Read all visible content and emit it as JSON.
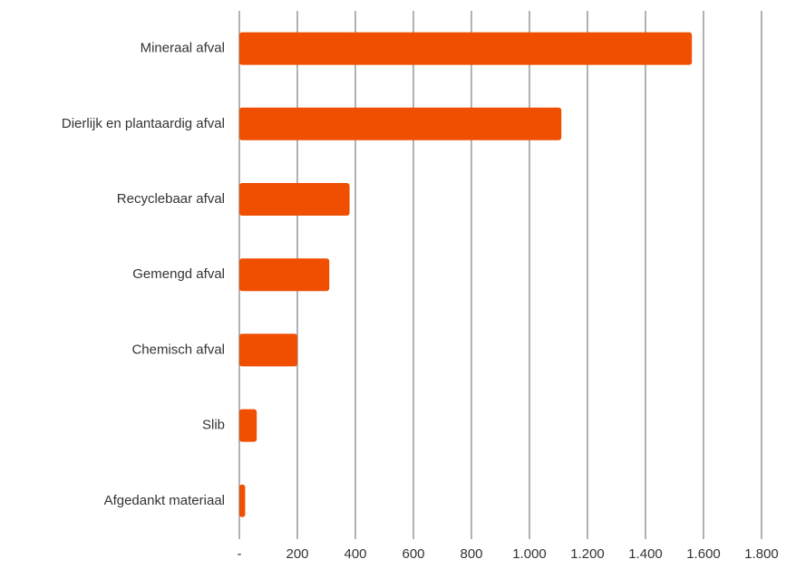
{
  "chart_data": {
    "type": "bar",
    "orientation": "horizontal",
    "categories": [
      "Mineraal afval",
      "Dierlijk en plantaardig afval",
      "Recyclebaar afval",
      "Gemengd afval",
      "Chemisch afval",
      "Slib",
      "Afgedankt materiaal"
    ],
    "values": [
      1560,
      1110,
      380,
      310,
      200,
      60,
      20
    ],
    "color": "#f04e00",
    "xlim": [
      0,
      1800
    ],
    "xticks": [
      {
        "value": 0,
        "label": "-"
      },
      200,
      400,
      600,
      800,
      {
        "value": 1000,
        "label": "1.000"
      },
      {
        "value": 1200,
        "label": "1.200"
      },
      {
        "value": 1400,
        "label": "1.400"
      },
      {
        "value": 1600,
        "label": "1.600"
      },
      {
        "value": 1800,
        "label": "1.800"
      }
    ],
    "grid": true
  }
}
